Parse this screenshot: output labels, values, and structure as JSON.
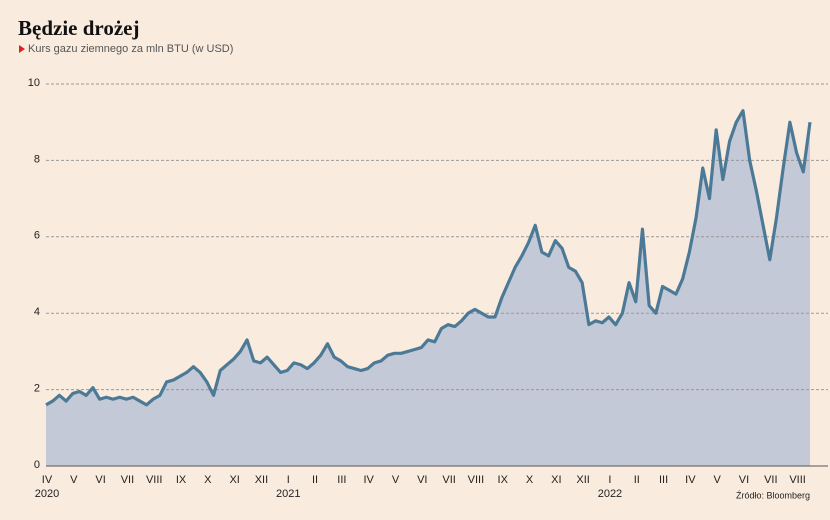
{
  "chart_data": {
    "type": "area",
    "title": "Będzie drożej",
    "subtitle": "Kurs gazu ziemnego za mln BTU (w USD)",
    "source": "Źródło: Bloomberg",
    "categories": [
      "IV",
      null,
      null,
      null,
      "V",
      null,
      null,
      null,
      "VI",
      null,
      null,
      null,
      "VII",
      null,
      null,
      null,
      "VIII",
      null,
      null,
      null,
      "IX",
      null,
      null,
      null,
      "X",
      null,
      null,
      null,
      "XI",
      null,
      null,
      null,
      "XII",
      null,
      null,
      null,
      "I",
      null,
      null,
      null,
      "II",
      null,
      null,
      null,
      "III",
      null,
      null,
      null,
      "IV",
      null,
      null,
      null,
      "V",
      null,
      null,
      null,
      "VI",
      null,
      null,
      null,
      "VII",
      null,
      null,
      null,
      "VIII",
      null,
      null,
      null,
      "IX",
      null,
      null,
      null,
      "X",
      null,
      null,
      null,
      "XI",
      null,
      null,
      null,
      "XII",
      null,
      null,
      null,
      "I",
      null,
      null,
      null,
      "II",
      null,
      null,
      null,
      "III",
      null,
      null,
      null,
      "IV",
      null,
      null,
      null,
      "V",
      null,
      null,
      null,
      "VI",
      null,
      null,
      null,
      "VII",
      null,
      null,
      null,
      "VIII",
      null,
      null
    ],
    "years": [
      "2020",
      null,
      null,
      null,
      null,
      null,
      null,
      null,
      null,
      null,
      null,
      null,
      null,
      null,
      null,
      null,
      null,
      null,
      null,
      null,
      null,
      null,
      null,
      null,
      null,
      null,
      null,
      null,
      null,
      null,
      null,
      null,
      null,
      null,
      null,
      null,
      "2021",
      null,
      null,
      null,
      null,
      null,
      null,
      null,
      null,
      null,
      null,
      null,
      null,
      null,
      null,
      null,
      null,
      null,
      null,
      null,
      null,
      null,
      null,
      null,
      null,
      null,
      null,
      null,
      null,
      null,
      null,
      null,
      null,
      null,
      null,
      null,
      null,
      null,
      null,
      null,
      null,
      null,
      null,
      null,
      null,
      null,
      null,
      null,
      "2022",
      null,
      null,
      null,
      null,
      null,
      null,
      null,
      null,
      null,
      null,
      null,
      null,
      null,
      null,
      null,
      null,
      null,
      null,
      null,
      null,
      null,
      null,
      null,
      null,
      null,
      null,
      null,
      null,
      null,
      null
    ],
    "values": [
      1.6,
      1.7,
      1.85,
      1.7,
      1.9,
      1.95,
      1.85,
      2.05,
      1.75,
      1.8,
      1.75,
      1.8,
      1.75,
      1.8,
      1.7,
      1.6,
      1.75,
      1.85,
      2.2,
      2.25,
      2.35,
      2.45,
      2.6,
      2.45,
      2.2,
      1.85,
      2.5,
      2.65,
      2.8,
      3.0,
      3.3,
      2.75,
      2.7,
      2.85,
      2.65,
      2.45,
      2.5,
      2.7,
      2.65,
      2.55,
      2.7,
      2.9,
      3.2,
      2.85,
      2.75,
      2.6,
      2.55,
      2.5,
      2.55,
      2.7,
      2.75,
      2.9,
      2.95,
      2.95,
      3.0,
      3.05,
      3.1,
      3.3,
      3.25,
      3.6,
      3.7,
      3.65,
      3.8,
      4.0,
      4.1,
      4.0,
      3.9,
      3.9,
      4.4,
      4.8,
      5.2,
      5.5,
      5.85,
      6.3,
      5.6,
      5.5,
      5.9,
      5.7,
      5.2,
      5.1,
      4.8,
      3.7,
      3.8,
      3.75,
      3.9,
      3.7,
      4.0,
      4.8,
      4.3,
      6.2,
      4.2,
      4.0,
      4.7,
      4.6,
      4.5,
      4.9,
      5.6,
      6.5,
      7.8,
      7.0,
      8.8,
      7.5,
      8.5,
      9.0,
      9.3,
      8.0,
      7.2,
      6.3,
      5.4,
      6.5,
      7.8,
      9.0,
      8.2,
      7.7,
      9.0
    ],
    "color": "#4c7a96",
    "fill": "#c4c9d8",
    "ylim": [
      0,
      10
    ],
    "yticks": [
      0,
      2,
      4,
      6,
      8,
      10
    ],
    "grid": true
  }
}
